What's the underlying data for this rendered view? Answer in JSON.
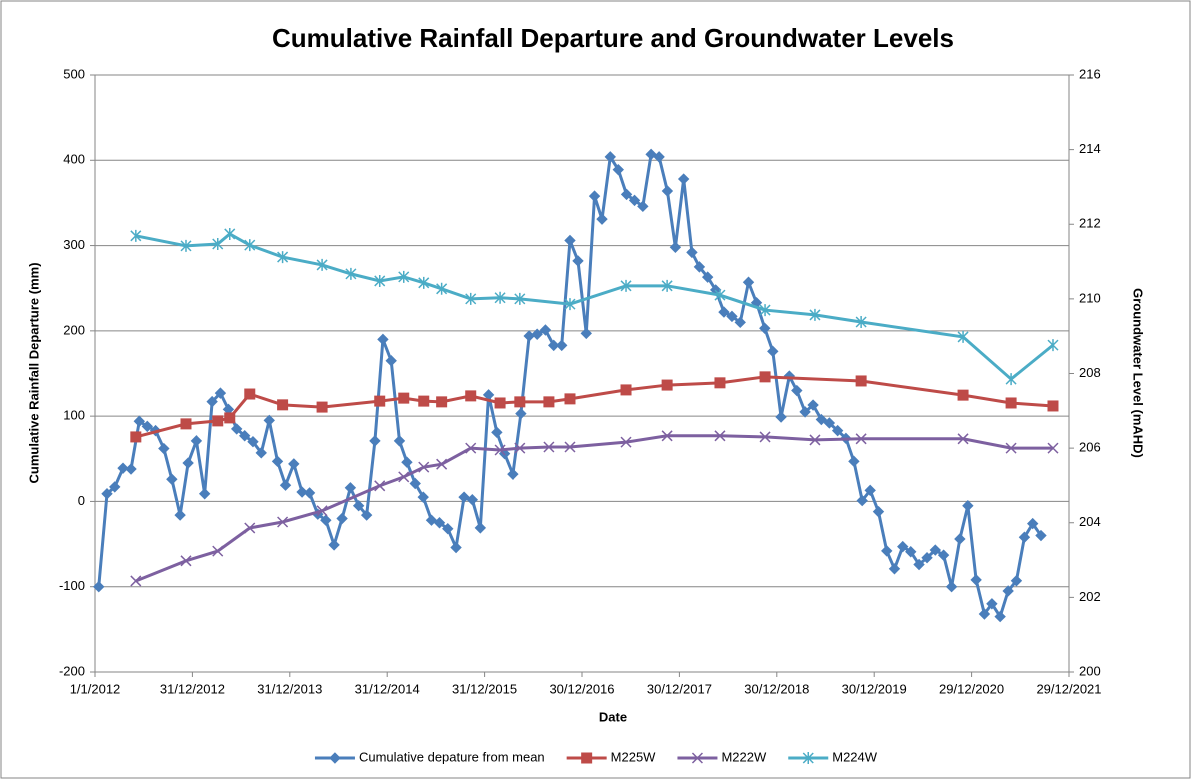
{
  "chart_data": {
    "type": "line",
    "title": "Cumulative Rainfall Departure and Groundwater Levels",
    "x_label": "Date",
    "y_label": "Cumulative Rainfall Departure (mm)",
    "y2_label": "Groundwater Level (mAHD)",
    "xlim": [
      "2012-01-01",
      "2021-12-29"
    ],
    "xticks": [
      {
        "value": "2012-01-01",
        "label": "1/1/2012"
      },
      {
        "value": "2012-12-31",
        "label": "31/12/2012"
      },
      {
        "value": "2013-12-31",
        "label": "31/12/2013"
      },
      {
        "value": "2014-12-31",
        "label": "31/12/2014"
      },
      {
        "value": "2015-12-31",
        "label": "31/12/2015"
      },
      {
        "value": "2016-12-30",
        "label": "30/12/2016"
      },
      {
        "value": "2017-12-30",
        "label": "30/12/2017"
      },
      {
        "value": "2018-12-30",
        "label": "30/12/2018"
      },
      {
        "value": "2019-12-30",
        "label": "30/12/2019"
      },
      {
        "value": "2020-12-29",
        "label": "29/12/2020"
      },
      {
        "value": "2021-12-29",
        "label": "29/12/2021"
      }
    ],
    "ylim": [
      -200,
      500
    ],
    "yticks": [
      -200,
      -100,
      0,
      100,
      200,
      300,
      400,
      500
    ],
    "y2lim": [
      200,
      216
    ],
    "y2ticks": [
      200,
      202,
      204,
      206,
      208,
      210,
      212,
      214,
      216
    ],
    "grid": true,
    "legend": "bottom",
    "series": [
      {
        "name": "Cumulative depature from mean",
        "color": "#4a7ebb",
        "marker": "diamond",
        "axis": "y",
        "x": [
          "2012-01-15",
          "2012-02-15",
          "2012-03-15",
          "2012-04-15",
          "2012-05-15",
          "2012-06-15",
          "2012-07-15",
          "2012-08-15",
          "2012-09-15",
          "2012-10-15",
          "2012-11-15",
          "2012-12-15",
          "2013-01-15",
          "2013-02-15",
          "2013-03-15",
          "2013-04-15",
          "2013-05-15",
          "2013-06-15",
          "2013-07-15",
          "2013-08-15",
          "2013-09-15",
          "2013-10-15",
          "2013-11-15",
          "2013-12-15",
          "2014-01-15",
          "2014-02-15",
          "2014-03-15",
          "2014-04-15",
          "2014-05-15",
          "2014-06-15",
          "2014-07-15",
          "2014-08-15",
          "2014-09-15",
          "2014-10-15",
          "2014-11-15",
          "2014-12-15",
          "2015-01-15",
          "2015-02-15",
          "2015-03-15",
          "2015-04-15",
          "2015-05-15",
          "2015-06-15",
          "2015-07-15",
          "2015-08-15",
          "2015-09-15",
          "2015-10-15",
          "2015-11-15",
          "2015-12-15",
          "2016-01-15",
          "2016-02-15",
          "2016-03-15",
          "2016-04-15",
          "2016-05-15",
          "2016-06-15",
          "2016-07-15",
          "2016-08-15",
          "2016-09-15",
          "2016-10-15",
          "2016-11-15",
          "2016-12-15",
          "2017-01-15",
          "2017-02-15",
          "2017-03-15",
          "2017-04-15",
          "2017-05-15",
          "2017-06-15",
          "2017-07-15",
          "2017-08-15",
          "2017-09-15",
          "2017-10-15",
          "2017-11-15",
          "2017-12-15",
          "2018-01-15",
          "2018-02-15",
          "2018-03-15",
          "2018-04-15",
          "2018-05-15",
          "2018-06-15",
          "2018-07-15",
          "2018-08-15",
          "2018-09-15",
          "2018-10-15",
          "2018-11-15",
          "2018-12-15",
          "2019-01-15",
          "2019-02-15",
          "2019-03-15",
          "2019-04-15",
          "2019-05-15",
          "2019-06-15",
          "2019-07-15",
          "2019-08-15",
          "2019-09-15",
          "2019-10-15",
          "2019-11-15",
          "2019-12-15",
          "2020-01-15",
          "2020-02-15",
          "2020-03-15",
          "2020-04-15",
          "2020-05-15",
          "2020-06-15",
          "2020-07-15",
          "2020-08-15",
          "2020-09-15",
          "2020-10-15",
          "2020-11-15",
          "2020-12-15",
          "2021-01-15",
          "2021-02-15",
          "2021-03-15",
          "2021-04-15",
          "2021-05-15",
          "2021-06-15",
          "2021-07-15",
          "2021-08-15",
          "2021-09-15"
        ],
        "values": [
          -100,
          9,
          17,
          39,
          38,
          94,
          88,
          83,
          62,
          26,
          -16,
          45,
          71,
          9,
          117,
          127,
          108,
          85,
          77,
          70,
          57,
          95,
          47,
          19,
          44,
          11,
          10,
          -15,
          -22,
          -51,
          -20,
          16,
          -5,
          -16,
          71,
          190,
          165,
          71,
          46,
          21,
          5,
          -22,
          -25,
          -32,
          -54,
          5,
          2,
          -31,
          125,
          81,
          56,
          32,
          103,
          194,
          196,
          201,
          183,
          183,
          306,
          282,
          197,
          358,
          331,
          404,
          389,
          360,
          353,
          346,
          407,
          404,
          364,
          298,
          378,
          292,
          275,
          263,
          248,
          222,
          217,
          210,
          257,
          233,
          203,
          176,
          99,
          147,
          130,
          105,
          113,
          96,
          92,
          83,
          74,
          47,
          1,
          13,
          -12,
          -58,
          -79,
          -53,
          -59,
          -74,
          -66,
          -57,
          -63,
          -100,
          -44,
          -5,
          -92,
          -132,
          -120,
          -135,
          -105,
          -93,
          -42,
          -26,
          -40
        ]
      },
      {
        "name": "M225W",
        "color": "#be4b48",
        "marker": "square",
        "axis": "y2",
        "x": [
          "2012-06-02",
          "2012-12-07",
          "2013-04-05",
          "2013-05-20",
          "2013-08-03",
          "2013-12-04",
          "2014-05-01",
          "2014-12-03",
          "2015-03-03",
          "2015-05-17",
          "2015-07-23",
          "2015-11-09",
          "2016-02-27",
          "2016-05-11",
          "2016-08-28",
          "2016-11-15",
          "2017-06-13",
          "2017-11-14",
          "2018-05-31",
          "2018-11-16",
          "2019-11-11",
          "2020-11-27",
          "2021-05-26",
          "2021-10-30"
        ],
        "values": [
          206.3,
          206.65,
          206.73,
          206.81,
          207.45,
          207.16,
          207.1,
          207.26,
          207.34,
          207.26,
          207.24,
          207.4,
          207.21,
          207.24,
          207.24,
          207.32,
          207.56,
          207.69,
          207.75,
          207.91,
          207.8,
          207.42,
          207.21,
          207.13
        ]
      },
      {
        "name": "M222W",
        "color": "#7d60a0",
        "marker": "x",
        "axis": "y2",
        "x": [
          "2012-06-02",
          "2012-12-07",
          "2013-04-05",
          "2013-08-03",
          "2013-12-04",
          "2014-05-01",
          "2014-12-03",
          "2015-03-03",
          "2015-05-17",
          "2015-07-23",
          "2015-11-09",
          "2016-02-27",
          "2016-05-11",
          "2016-08-28",
          "2016-11-15",
          "2017-06-13",
          "2017-11-14",
          "2018-05-31",
          "2018-11-16",
          "2019-05-22",
          "2019-11-11",
          "2020-11-27",
          "2021-05-26",
          "2021-10-30"
        ],
        "values": [
          202.44,
          202.98,
          203.24,
          203.86,
          204.02,
          204.32,
          204.99,
          205.23,
          205.49,
          205.57,
          206.0,
          205.95,
          206.0,
          206.03,
          206.03,
          206.16,
          206.33,
          206.33,
          206.3,
          206.22,
          206.25,
          206.25,
          206.0,
          206.0
        ]
      },
      {
        "name": "M224W",
        "color": "#4bacc6",
        "marker": "star",
        "axis": "y2",
        "x": [
          "2012-06-02",
          "2012-12-07",
          "2013-04-05",
          "2013-05-20",
          "2013-08-03",
          "2013-12-04",
          "2014-05-01",
          "2014-08-17",
          "2014-12-03",
          "2015-03-03",
          "2015-05-17",
          "2015-07-23",
          "2015-11-09",
          "2016-02-27",
          "2016-05-11",
          "2016-11-15",
          "2017-06-13",
          "2017-11-14",
          "2018-05-31",
          "2018-11-16",
          "2019-05-22",
          "2019-11-11",
          "2020-11-27",
          "2021-05-26",
          "2021-10-30"
        ],
        "values": [
          211.69,
          211.42,
          211.47,
          211.74,
          211.44,
          211.12,
          210.91,
          210.67,
          210.48,
          210.59,
          210.43,
          210.27,
          210.0,
          210.03,
          210.0,
          209.86,
          210.35,
          210.35,
          210.1,
          209.7,
          209.57,
          209.38,
          208.98,
          207.85,
          208.76
        ]
      }
    ]
  }
}
